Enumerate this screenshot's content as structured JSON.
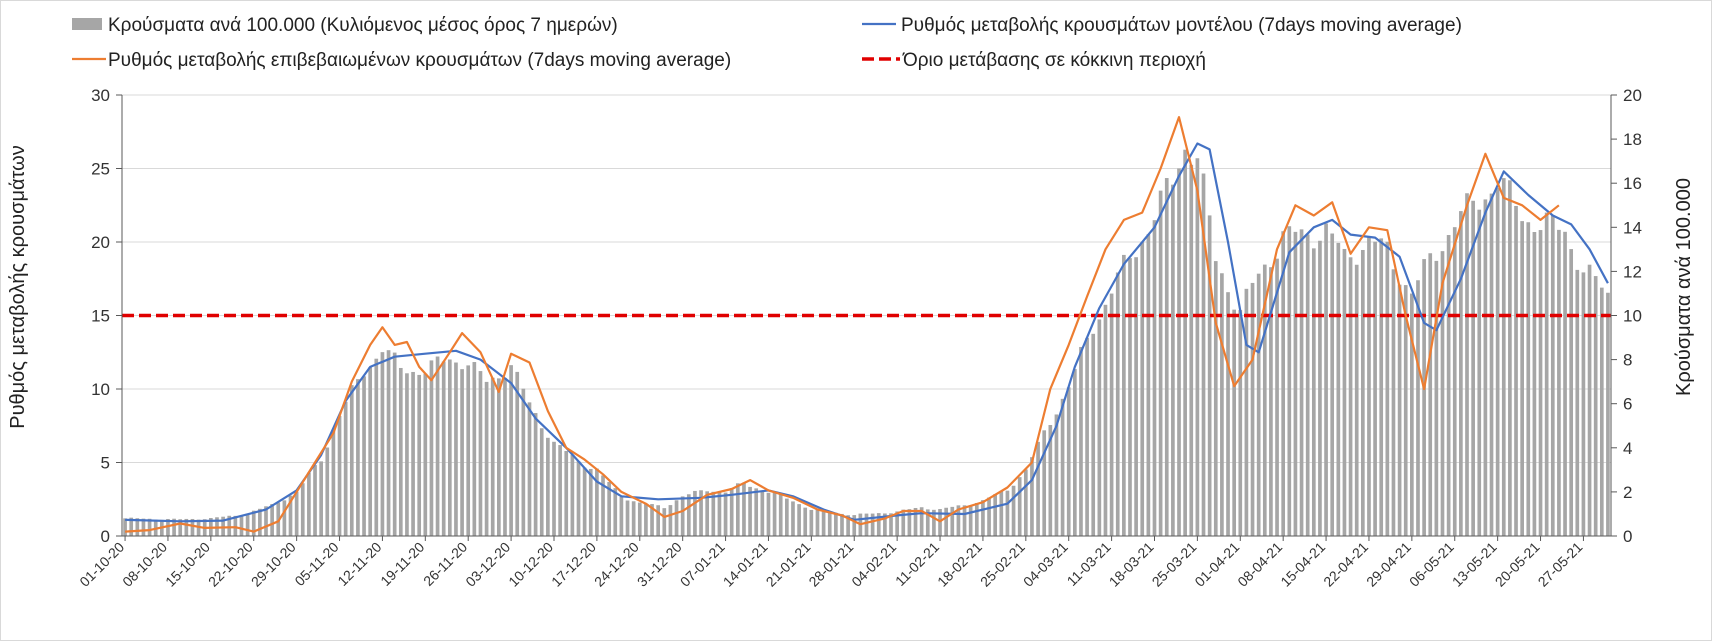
{
  "chart_data": {
    "type": "bar",
    "title": "",
    "ylabel_left": "Ρυθμός μεταβολής κρουσμάτων",
    "ylabel_right": "Κρούσματα ανά 100.000",
    "ylim_left": [
      0,
      30
    ],
    "ylim_right": [
      0,
      20
    ],
    "yticks_left": [
      "0",
      "5",
      "10",
      "15",
      "20",
      "25",
      "30"
    ],
    "yticks_right": [
      "0",
      "2",
      "4",
      "6",
      "8",
      "10",
      "12",
      "14",
      "16",
      "18",
      "20"
    ],
    "grid": true,
    "legend_position": "top",
    "x_start": "2020-10-01",
    "x_end": "2021-05-31",
    "x_tick_labels": [
      "01-10-20",
      "08-10-20",
      "15-10-20",
      "22-10-20",
      "29-10-20",
      "05-11-20",
      "12-11-20",
      "19-11-20",
      "26-11-20",
      "03-12-20",
      "10-12-20",
      "17-12-20",
      "24-12-20",
      "31-12-20",
      "07-01-21",
      "14-01-21",
      "21-01-21",
      "28-01-21",
      "04-02-21",
      "11-02-21",
      "18-02-21",
      "25-02-21",
      "04-03-21",
      "11-03-21",
      "18-03-21",
      "25-03-21",
      "01-04-21",
      "08-04-21",
      "15-04-21",
      "22-04-21",
      "29-04-21",
      "06-05-21",
      "13-05-21",
      "20-05-21",
      "27-05-21"
    ],
    "series": [
      {
        "name": "Κρούσματα ανά 100.000 (Κυλιόμενος μέσος όρος 7 ημερών)",
        "kind": "bar",
        "axis": "right",
        "color": "#a6a6a6",
        "points": [
          [
            "2020-10-01",
            0.8
          ],
          [
            "2020-10-10",
            0.75
          ],
          [
            "2020-10-15",
            0.8
          ],
          [
            "2020-10-20",
            0.95
          ],
          [
            "2020-10-25",
            1.4
          ],
          [
            "2020-10-29",
            2.0
          ],
          [
            "2020-11-02",
            3.5
          ],
          [
            "2020-11-05",
            5.5
          ],
          [
            "2020-11-09",
            7.5
          ],
          [
            "2020-11-12",
            8.5
          ],
          [
            "2020-11-15",
            7.6
          ],
          [
            "2020-11-19",
            7.5
          ],
          [
            "2020-11-23",
            8.1
          ],
          [
            "2020-11-26",
            7.8
          ],
          [
            "2020-11-29",
            7.0
          ],
          [
            "2020-12-03",
            7.7
          ],
          [
            "2020-12-06",
            6.0
          ],
          [
            "2020-12-10",
            4.2
          ],
          [
            "2020-12-14",
            3.4
          ],
          [
            "2020-12-17",
            3.0
          ],
          [
            "2020-12-21",
            1.8
          ],
          [
            "2020-12-24",
            1.5
          ],
          [
            "2020-12-28",
            1.3
          ],
          [
            "2020-12-31",
            1.8
          ],
          [
            "2021-01-04",
            2.1
          ],
          [
            "2021-01-07",
            2.0
          ],
          [
            "2021-01-10",
            2.4
          ],
          [
            "2021-01-14",
            2.0
          ],
          [
            "2021-01-18",
            1.6
          ],
          [
            "2021-01-21",
            1.2
          ],
          [
            "2021-01-28",
            0.95
          ],
          [
            "2021-02-04",
            1.1
          ],
          [
            "2021-02-08",
            1.3
          ],
          [
            "2021-02-11",
            1.2
          ],
          [
            "2021-02-15",
            1.4
          ],
          [
            "2021-02-18",
            1.6
          ],
          [
            "2021-02-22",
            2.1
          ],
          [
            "2021-02-25",
            3.0
          ],
          [
            "2021-03-01",
            5.2
          ],
          [
            "2021-03-04",
            6.8
          ],
          [
            "2021-03-08",
            9.5
          ],
          [
            "2021-03-11",
            11.2
          ],
          [
            "2021-03-15",
            13.0
          ],
          [
            "2021-03-18",
            14.6
          ],
          [
            "2021-03-21",
            16.0
          ],
          [
            "2021-03-23",
            17.8
          ],
          [
            "2021-03-25",
            17.3
          ],
          [
            "2021-03-28",
            12.5
          ],
          [
            "2021-04-01",
            10.2
          ],
          [
            "2021-04-04",
            11.8
          ],
          [
            "2021-04-08",
            13.6
          ],
          [
            "2021-04-11",
            13.6
          ],
          [
            "2021-04-15",
            13.9
          ],
          [
            "2021-04-18",
            12.6
          ],
          [
            "2021-04-22",
            13.4
          ],
          [
            "2021-04-25",
            12.9
          ],
          [
            "2021-04-29",
            11.0
          ],
          [
            "2021-05-02",
            12.5
          ],
          [
            "2021-05-06",
            14.2
          ],
          [
            "2021-05-10",
            15.3
          ],
          [
            "2021-05-13",
            16.1
          ],
          [
            "2021-05-17",
            14.6
          ],
          [
            "2021-05-20",
            14.1
          ],
          [
            "2021-05-24",
            13.9
          ],
          [
            "2021-05-27",
            12.0
          ],
          [
            "2021-05-31",
            11.0
          ]
        ]
      },
      {
        "name": "Ρυθμός μεταβολής κρουσμάτων μοντέλου (7days moving average)",
        "kind": "line",
        "axis": "left",
        "color": "#4472c4",
        "points": [
          [
            "2020-10-01",
            1.1
          ],
          [
            "2020-10-10",
            1.0
          ],
          [
            "2020-10-17",
            1.05
          ],
          [
            "2020-10-24",
            1.8
          ],
          [
            "2020-10-29",
            3.1
          ],
          [
            "2020-11-02",
            5.5
          ],
          [
            "2020-11-06",
            9.2
          ],
          [
            "2020-11-10",
            11.5
          ],
          [
            "2020-11-14",
            12.2
          ],
          [
            "2020-11-19",
            12.4
          ],
          [
            "2020-11-24",
            12.6
          ],
          [
            "2020-11-28",
            12.0
          ],
          [
            "2020-12-03",
            10.4
          ],
          [
            "2020-12-07",
            8.0
          ],
          [
            "2020-12-12",
            6.0
          ],
          [
            "2020-12-17",
            3.7
          ],
          [
            "2020-12-21",
            2.7
          ],
          [
            "2020-12-27",
            2.5
          ],
          [
            "2021-01-03",
            2.6
          ],
          [
            "2021-01-08",
            2.8
          ],
          [
            "2021-01-14",
            3.1
          ],
          [
            "2021-01-18",
            2.7
          ],
          [
            "2021-01-23",
            1.8
          ],
          [
            "2021-01-28",
            1.1
          ],
          [
            "2021-02-04",
            1.4
          ],
          [
            "2021-02-08",
            1.55
          ],
          [
            "2021-02-15",
            1.5
          ],
          [
            "2021-02-22",
            2.2
          ],
          [
            "2021-02-26",
            3.8
          ],
          [
            "2021-03-02",
            7.5
          ],
          [
            "2021-03-05",
            11.5
          ],
          [
            "2021-03-09",
            15.5
          ],
          [
            "2021-03-13",
            18.5
          ],
          [
            "2021-03-18",
            21.0
          ],
          [
            "2021-03-22",
            24.5
          ],
          [
            "2021-03-25",
            26.7
          ],
          [
            "2021-03-27",
            26.3
          ],
          [
            "2021-03-30",
            20.0
          ],
          [
            "2021-04-02",
            13.0
          ],
          [
            "2021-04-04",
            12.5
          ],
          [
            "2021-04-09",
            19.3
          ],
          [
            "2021-04-13",
            21.0
          ],
          [
            "2021-04-16",
            21.5
          ],
          [
            "2021-04-19",
            20.5
          ],
          [
            "2021-04-23",
            20.3
          ],
          [
            "2021-04-27",
            19.0
          ],
          [
            "2021-05-01",
            14.5
          ],
          [
            "2021-05-03",
            14.0
          ],
          [
            "2021-05-07",
            17.5
          ],
          [
            "2021-05-11",
            22.0
          ],
          [
            "2021-05-14",
            24.8
          ],
          [
            "2021-05-18",
            23.2
          ],
          [
            "2021-05-22",
            21.8
          ],
          [
            "2021-05-25",
            21.2
          ],
          [
            "2021-05-28",
            19.5
          ],
          [
            "2021-05-31",
            17.2
          ]
        ]
      },
      {
        "name": "Ρυθμός μεταβολής επιβεβαιωμένων κρουσμάτων (7days moving average)",
        "kind": "line",
        "axis": "left",
        "color": "#ed7d31",
        "points": [
          [
            "2020-10-01",
            0.3
          ],
          [
            "2020-10-05",
            0.4
          ],
          [
            "2020-10-10",
            0.85
          ],
          [
            "2020-10-14",
            0.55
          ],
          [
            "2020-10-19",
            0.6
          ],
          [
            "2020-10-22",
            0.3
          ],
          [
            "2020-10-26",
            1.0
          ],
          [
            "2020-10-29",
            3.0
          ],
          [
            "2020-11-01",
            5.0
          ],
          [
            "2020-11-04",
            7.0
          ],
          [
            "2020-11-07",
            10.5
          ],
          [
            "2020-11-10",
            13.0
          ],
          [
            "2020-11-12",
            14.2
          ],
          [
            "2020-11-14",
            13.0
          ],
          [
            "2020-11-16",
            13.2
          ],
          [
            "2020-11-18",
            11.5
          ],
          [
            "2020-11-20",
            10.6
          ],
          [
            "2020-11-23",
            12.5
          ],
          [
            "2020-11-25",
            13.8
          ],
          [
            "2020-11-28",
            12.5
          ],
          [
            "2020-12-01",
            9.8
          ],
          [
            "2020-12-03",
            12.4
          ],
          [
            "2020-12-06",
            11.8
          ],
          [
            "2020-12-09",
            8.5
          ],
          [
            "2020-12-12",
            6.0
          ],
          [
            "2020-12-15",
            5.2
          ],
          [
            "2020-12-18",
            4.2
          ],
          [
            "2020-12-21",
            3.0
          ],
          [
            "2020-12-25",
            2.2
          ],
          [
            "2020-12-28",
            1.3
          ],
          [
            "2020-12-31",
            1.7
          ],
          [
            "2021-01-04",
            2.8
          ],
          [
            "2021-01-08",
            3.2
          ],
          [
            "2021-01-11",
            3.8
          ],
          [
            "2021-01-14",
            3.1
          ],
          [
            "2021-01-18",
            2.6
          ],
          [
            "2021-01-22",
            1.8
          ],
          [
            "2021-01-26",
            1.4
          ],
          [
            "2021-01-29",
            0.8
          ],
          [
            "2021-02-02",
            1.2
          ],
          [
            "2021-02-05",
            1.7
          ],
          [
            "2021-02-08",
            1.7
          ],
          [
            "2021-02-11",
            1.0
          ],
          [
            "2021-02-14",
            1.8
          ],
          [
            "2021-02-18",
            2.3
          ],
          [
            "2021-02-22",
            3.3
          ],
          [
            "2021-02-26",
            5.0
          ],
          [
            "2021-03-01",
            10.0
          ],
          [
            "2021-03-04",
            13.0
          ],
          [
            "2021-03-07",
            16.3
          ],
          [
            "2021-03-10",
            19.5
          ],
          [
            "2021-03-13",
            21.5
          ],
          [
            "2021-03-16",
            22.0
          ],
          [
            "2021-03-19",
            25.0
          ],
          [
            "2021-03-22",
            28.5
          ],
          [
            "2021-03-25",
            23.5
          ],
          [
            "2021-03-28",
            14.5
          ],
          [
            "2021-03-31",
            10.2
          ],
          [
            "2021-04-03",
            12.0
          ],
          [
            "2021-04-07",
            19.5
          ],
          [
            "2021-04-10",
            22.5
          ],
          [
            "2021-04-13",
            21.8
          ],
          [
            "2021-04-16",
            22.7
          ],
          [
            "2021-04-19",
            19.2
          ],
          [
            "2021-04-22",
            21.0
          ],
          [
            "2021-04-25",
            20.8
          ],
          [
            "2021-04-28",
            15.0
          ],
          [
            "2021-05-01",
            10.0
          ],
          [
            "2021-05-04",
            17.2
          ],
          [
            "2021-05-08",
            22.5
          ],
          [
            "2021-05-11",
            26.0
          ],
          [
            "2021-05-14",
            23.0
          ],
          [
            "2021-05-17",
            22.5
          ],
          [
            "2021-05-20",
            21.5
          ],
          [
            "2021-05-23",
            22.5
          ]
        ]
      },
      {
        "name": "Όριο μετάβασης σε κόκκινη περιοχή",
        "kind": "hline",
        "axis": "left",
        "color": "#e00000",
        "value": 15
      }
    ]
  }
}
